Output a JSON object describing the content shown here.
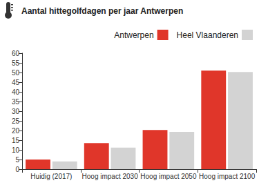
{
  "chart_data": {
    "type": "bar",
    "title": "Aantal hittegolfdagen per jaar Antwerpen",
    "categories": [
      "Huidig (2017)",
      "Hoog impact 2030",
      "Hoog impact 2050",
      "Hoog impact 2100"
    ],
    "series": [
      {
        "name": "Antwerpen",
        "color": "#e0362a",
        "values": [
          5,
          13.5,
          20.3,
          51
        ]
      },
      {
        "name": "Heel Vlaanderen",
        "color": "#d3d3d3",
        "values": [
          4,
          11.2,
          19.3,
          50.3
        ]
      }
    ],
    "ylim": [
      0,
      60
    ],
    "yticks": [
      0,
      5,
      10,
      15,
      20,
      25,
      30,
      35,
      40,
      45,
      50,
      55,
      60
    ],
    "grid": false,
    "legend": "top-right"
  }
}
